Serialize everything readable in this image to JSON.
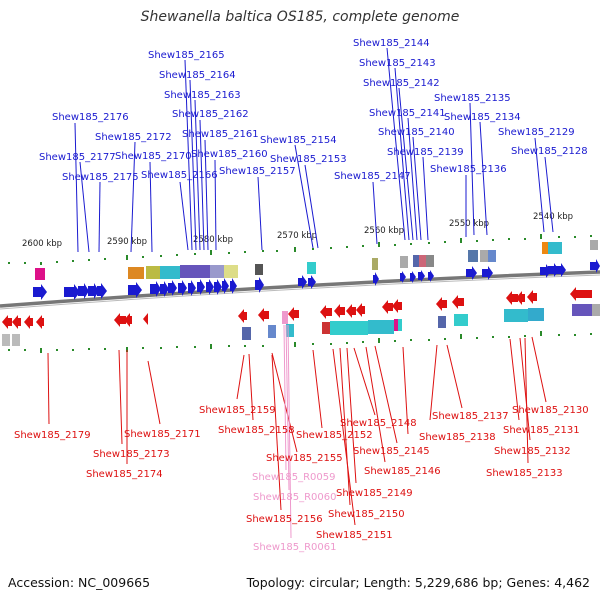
{
  "title": "Shewanella baltica OS185, complete genome",
  "footer": {
    "accession": "Accession: NC_009665",
    "summary": "Topology: circular; Length: 5,229,686 bp; Genes: 4,462"
  },
  "colors": {
    "forward": "#1a1ad0",
    "reverse": "#dd1111",
    "rna": "#ee99cc",
    "backbone": "#777777",
    "tick": "#2a8a2a"
  },
  "scale_labels": [
    "2600 kbp",
    "2590 kbp",
    "2580 kbp",
    "2570 kbp",
    "2560 kbp",
    "2550 kbp",
    "2540 kbp"
  ],
  "forward_genes": [
    "Shew185_2165",
    "Shew185_2164",
    "Shew185_2163",
    "Shew185_2162",
    "Shew185_2161",
    "Shew185_2160",
    "Shew185_2176",
    "Shew185_2172",
    "Shew185_2177",
    "Shew185_2170",
    "Shew185_2175",
    "Shew185_2166",
    "Shew185_2157",
    "Shew185_2154",
    "Shew185_2153",
    "Shew185_2144",
    "Shew185_2143",
    "Shew185_2142",
    "Shew185_2135",
    "Shew185_2141",
    "Shew185_2134",
    "Shew185_2140",
    "Shew185_2129",
    "Shew185_2139",
    "Shew185_2128",
    "Shew185_2147",
    "Shew185_2136"
  ],
  "reverse_genes": [
    "Shew185_2179",
    "Shew185_2173",
    "Shew185_2174",
    "Shew185_2171",
    "Shew185_2159",
    "Shew185_2158",
    "Shew185_2155",
    "Shew185_R0059",
    "Shew185_R0060",
    "Shew185_2156",
    "Shew185_R0061",
    "Shew185_2152",
    "Shew185_2148",
    "Shew185_2145",
    "Shew185_2146",
    "Shew185_2149",
    "Shew185_2150",
    "Shew185_2151",
    "Shew185_2137",
    "Shew185_2138",
    "Shew185_2130",
    "Shew185_2131",
    "Shew185_2132",
    "Shew185_2133"
  ]
}
